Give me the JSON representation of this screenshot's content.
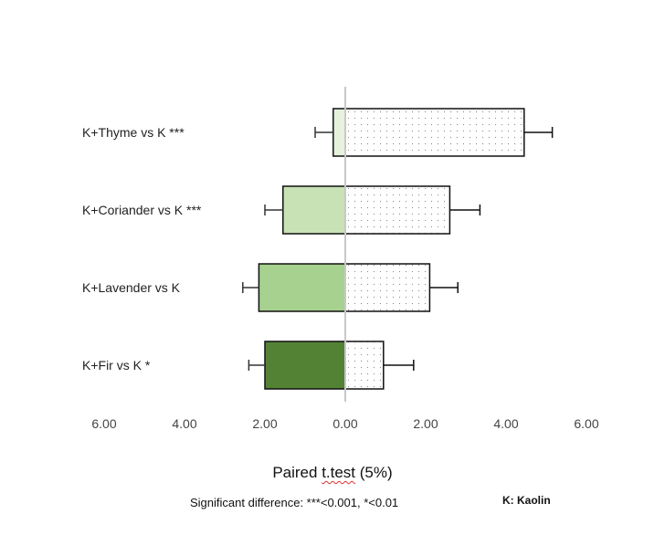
{
  "chart_data": {
    "type": "bar",
    "orientation": "horizontal",
    "categories": [
      "K+Thyme vs K ***",
      "K+Coriander vs K ***",
      "K+Lavender vs K",
      "K+Fir vs K *"
    ],
    "series": [
      {
        "side": "left",
        "values": [
          0.3,
          1.55,
          2.15,
          2.0
        ],
        "errors": [
          0.45,
          0.45,
          0.4,
          0.4
        ],
        "colors": [
          "#e6f2dc",
          "#c9e2b5",
          "#a6d18f",
          "#548235"
        ]
      },
      {
        "side": "right",
        "values": [
          4.45,
          2.6,
          2.1,
          0.95
        ],
        "errors": [
          0.7,
          0.75,
          0.7,
          0.75
        ],
        "fill": "dotted"
      }
    ],
    "xticks": [
      "6.00",
      "4.00",
      "2.00",
      "0.00",
      "2.00",
      "4.00",
      "6.00"
    ],
    "xlim": [
      -6,
      6
    ],
    "xlabel_prefix": "Paired ",
    "xlabel_word": "t.test",
    "xlabel_suffix": " (5%)",
    "note": "Significant difference: ***<0.001, *<0.01",
    "key": "K: Kaolin",
    "grid": false
  }
}
